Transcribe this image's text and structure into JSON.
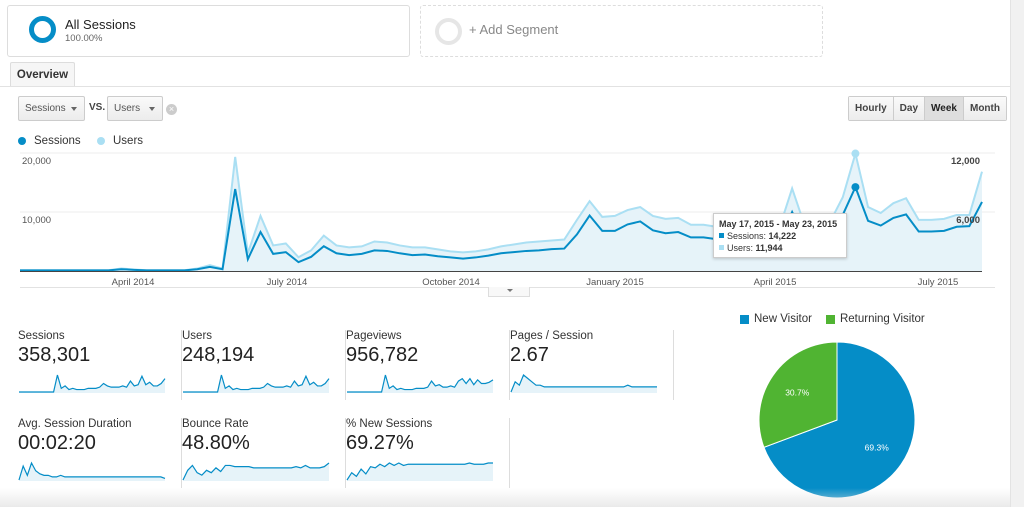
{
  "segments": {
    "active": {
      "name": "All Sessions",
      "percent": "100.00%"
    },
    "add_label": "+ Add Segment"
  },
  "tabs": [
    {
      "label": "Overview"
    }
  ],
  "controls": {
    "metric1": "Sessions",
    "vs": "VS.",
    "metric2": "Users",
    "close": "×",
    "granularity": [
      {
        "label": "Hourly",
        "active": false
      },
      {
        "label": "Day",
        "active": false
      },
      {
        "label": "Week",
        "active": true
      },
      {
        "label": "Month",
        "active": false
      }
    ]
  },
  "colors": {
    "sessions": "#058dc7",
    "users": "#aadff3",
    "new_visitor": "#058dc7",
    "returning_visitor": "#50b432",
    "area": "#e6f3f9"
  },
  "chart_data": {
    "type": "line",
    "legend": [
      {
        "name": "Sessions"
      },
      {
        "name": "Users"
      }
    ],
    "left_axis": {
      "ticks": [
        "20,000",
        "10,000"
      ],
      "ylim": [
        0,
        20000
      ]
    },
    "right_axis": {
      "ticks": [
        "12,000",
        "6,000"
      ],
      "ylim": [
        0,
        12000
      ]
    },
    "x_ticks": [
      "April 2014",
      "July 2014",
      "October 2014",
      "January 2015",
      "April 2015",
      "July 2015"
    ],
    "granularity": "week",
    "series": [
      {
        "name": "Sessions",
        "axis": "left",
        "values": [
          100,
          100,
          100,
          100,
          100,
          100,
          100,
          100,
          300,
          200,
          100,
          100,
          100,
          100,
          300,
          700,
          300,
          13900,
          2000,
          6600,
          2900,
          3200,
          1500,
          2400,
          4200,
          3000,
          2700,
          2900,
          3500,
          3400,
          3000,
          2700,
          2800,
          2500,
          2300,
          2100,
          2300,
          2600,
          3000,
          3200,
          3400,
          3500,
          3700,
          3800,
          6200,
          9400,
          6800,
          6800,
          7900,
          8400,
          6900,
          6400,
          6600,
          5700,
          5700,
          5400,
          5200,
          5000,
          5000,
          5000,
          5200,
          10000,
          5500,
          5800,
          6000,
          9500,
          14222,
          8500,
          7700,
          9000,
          9600,
          6700,
          6700,
          6800,
          7500,
          7600,
          11700
        ]
      },
      {
        "name": "Users",
        "axis": "right",
        "values": [
          80,
          80,
          80,
          80,
          80,
          80,
          80,
          80,
          250,
          150,
          80,
          80,
          80,
          80,
          250,
          600,
          250,
          11600,
          1800,
          5600,
          2600,
          2800,
          1400,
          2100,
          3600,
          2600,
          2400,
          2500,
          3000,
          2900,
          2600,
          2400,
          2400,
          2200,
          2000,
          1900,
          2000,
          2200,
          2500,
          2700,
          2900,
          3000,
          3100,
          3200,
          5200,
          7100,
          5500,
          5600,
          6200,
          6500,
          5600,
          5300,
          5400,
          4700,
          4700,
          4500,
          4300,
          4200,
          4200,
          4200,
          4400,
          8400,
          4600,
          4800,
          5000,
          7500,
          11944,
          6500,
          5900,
          6900,
          7400,
          5200,
          5200,
          5300,
          5700,
          5700,
          10100
        ]
      }
    ],
    "tooltip": {
      "title": "May 17, 2015 - May 23, 2015",
      "rows": [
        {
          "label": "Sessions:",
          "value": "14,222"
        },
        {
          "label": "Users:",
          "value": "11,944"
        }
      ]
    }
  },
  "metrics": [
    {
      "label": "Sessions",
      "value": "358,301",
      "trend": [
        0,
        0,
        0,
        0,
        0,
        0,
        0,
        0,
        0,
        0,
        14,
        3,
        5,
        2,
        3,
        2,
        2,
        2,
        3,
        3,
        3,
        4,
        7,
        5,
        4,
        4,
        4,
        5,
        4,
        9,
        5,
        6,
        13,
        6,
        8,
        5,
        5,
        7,
        11
      ]
    },
    {
      "label": "Users",
      "value": "248,194",
      "trend": [
        0,
        0,
        0,
        0,
        0,
        0,
        0,
        0,
        0,
        0,
        14,
        3,
        5,
        2,
        3,
        2,
        2,
        2,
        3,
        3,
        3,
        4,
        7,
        5,
        4,
        4,
        4,
        5,
        4,
        9,
        5,
        6,
        13,
        6,
        8,
        5,
        5,
        7,
        11
      ]
    },
    {
      "label": "Pageviews",
      "value": "956,782",
      "trend": [
        0,
        0,
        0,
        0,
        0,
        0,
        0,
        0,
        0,
        0,
        14,
        3,
        5,
        2,
        3,
        2,
        2,
        2,
        3,
        3,
        3,
        4,
        9,
        5,
        6,
        4,
        4,
        5,
        4,
        9,
        11,
        7,
        11,
        6,
        10,
        7,
        7,
        8,
        10
      ]
    },
    {
      "label": "Pages / Session",
      "value": "2.67",
      "trend": [
        0,
        6,
        4,
        10,
        8,
        6,
        4,
        4,
        3,
        3,
        3,
        3,
        3,
        3,
        3,
        3,
        3,
        3,
        3,
        3,
        3,
        3,
        3,
        3,
        3,
        3,
        3,
        3,
        4,
        3,
        3,
        3,
        3,
        3,
        3,
        3
      ]
    },
    {
      "label": "Avg. Session Duration",
      "value": "00:02:20",
      "trend": [
        0,
        9,
        3,
        11,
        6,
        4,
        3,
        3,
        2,
        2,
        3,
        2,
        2,
        2,
        2,
        2,
        2,
        2,
        2,
        2,
        2,
        2,
        2,
        2,
        2,
        2,
        2,
        2,
        2,
        2,
        2,
        2,
        2,
        2,
        2,
        1
      ]
    },
    {
      "label": "Bounce Rate",
      "value": "48.80%",
      "trend": [
        0,
        8,
        12,
        6,
        4,
        8,
        6,
        10,
        7,
        12,
        12,
        11,
        11,
        11,
        11,
        10,
        10,
        10,
        10,
        10,
        10,
        10,
        10,
        10,
        11,
        10,
        12,
        10,
        10,
        10,
        11,
        14
      ]
    },
    {
      "label": "% New Sessions",
      "value": "69.27%",
      "trend": [
        0,
        6,
        3,
        9,
        5,
        11,
        10,
        13,
        11,
        14,
        12,
        14,
        12,
        13,
        13,
        13,
        13,
        13,
        13,
        13,
        13,
        13,
        13,
        13,
        13,
        13,
        14,
        13,
        13,
        13,
        14,
        14
      ]
    }
  ],
  "pie": {
    "type": "pie",
    "slices": [
      {
        "name": "New Visitor",
        "value": 69.3,
        "label": "69.3%"
      },
      {
        "name": "Returning Visitor",
        "value": 30.7,
        "label": "30.7%"
      }
    ]
  }
}
